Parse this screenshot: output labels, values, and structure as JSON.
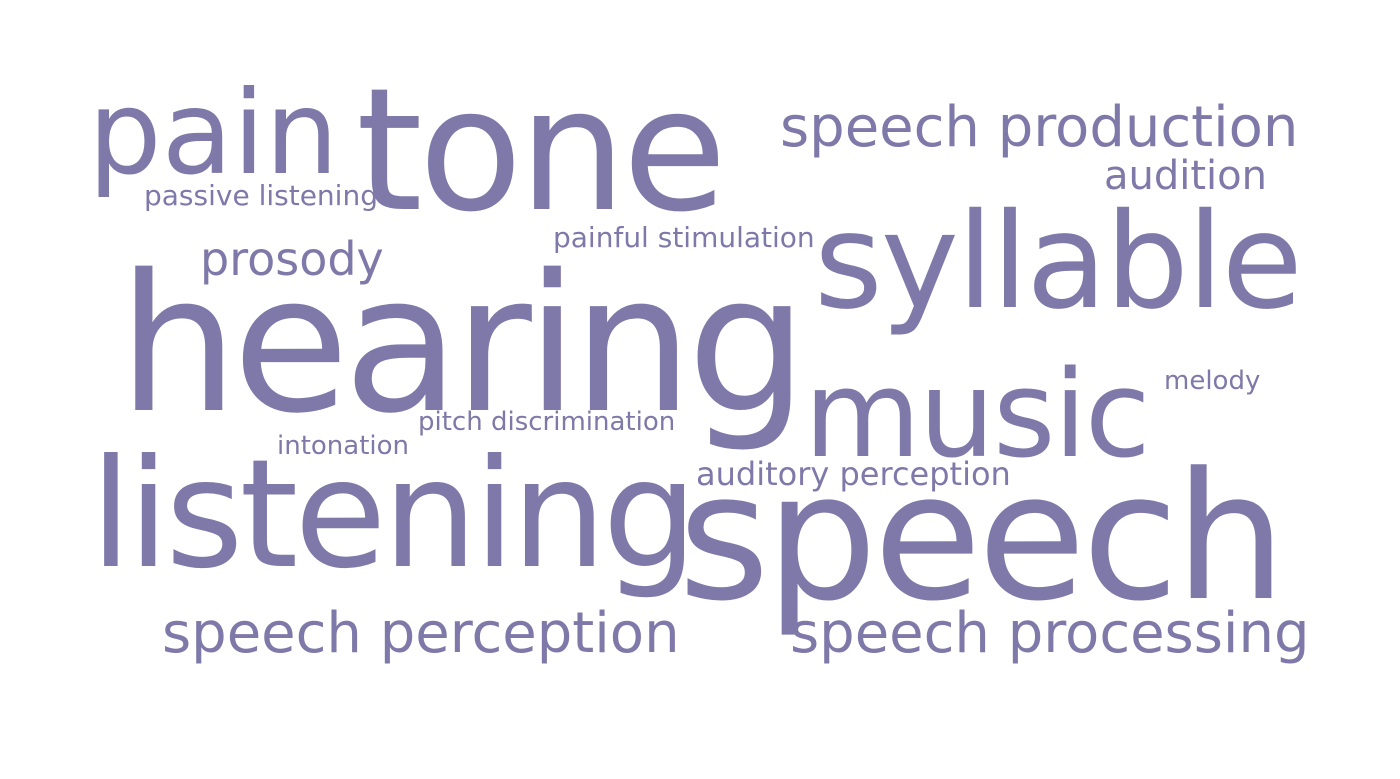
{
  "cloud": {
    "color": "#7f79a9",
    "words": {
      "pain": "pain",
      "tone": "tone",
      "speech_production": "speech production",
      "audition": "audition",
      "passive_listening": "passive listening",
      "painful_stimulation": "painful stimulation",
      "prosody": "prosody",
      "syllable": "syllable",
      "hearing": "hearing",
      "melody": "melody",
      "music": "music",
      "pitch_discrimination": "pitch discrimination",
      "intonation": "intonation",
      "auditory_perception": "auditory perception",
      "listening": "listening",
      "speech": "speech",
      "speech_perception": "speech perception",
      "speech_processing": "speech processing"
    }
  }
}
